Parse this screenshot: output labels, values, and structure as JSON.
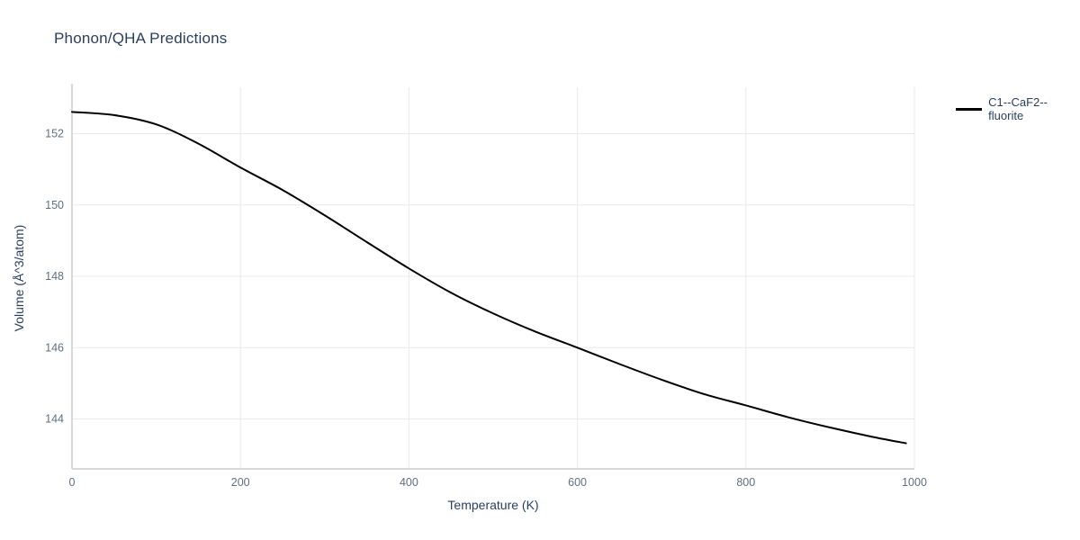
{
  "page": {
    "background": "#ffffff"
  },
  "chart_data": {
    "type": "line",
    "title": "Phonon/QHA Predictions",
    "xlabel": "Temperature (K)",
    "ylabel": "Volume (Å^3/atom)",
    "xlim": [
      0,
      1000
    ],
    "ylim": [
      142.6,
      153.3
    ],
    "xticks": [
      0,
      200,
      400,
      600,
      800,
      1000
    ],
    "yticks": [
      144,
      146,
      148,
      150,
      152
    ],
    "grid": true,
    "legend_position": "top-right-outside",
    "x": [
      0,
      50,
      100,
      150,
      200,
      250,
      300,
      350,
      400,
      450,
      500,
      550,
      600,
      650,
      700,
      750,
      800,
      850,
      900,
      950,
      990
    ],
    "series": [
      {
        "name": "C1--CaF2--fluorite",
        "color": "#000000",
        "values": [
          152.61,
          152.52,
          152.26,
          151.72,
          151.05,
          150.42,
          149.71,
          148.96,
          148.22,
          147.54,
          146.96,
          146.45,
          146.0,
          145.54,
          145.1,
          144.7,
          144.38,
          144.05,
          143.76,
          143.5,
          143.32
        ]
      }
    ],
    "colors": {
      "line": "#000000",
      "grid": "#e9e9e9",
      "axis_line": "#c9ccce",
      "tick_label": "#5f6f81",
      "title_text": "#2a3f5f"
    }
  }
}
